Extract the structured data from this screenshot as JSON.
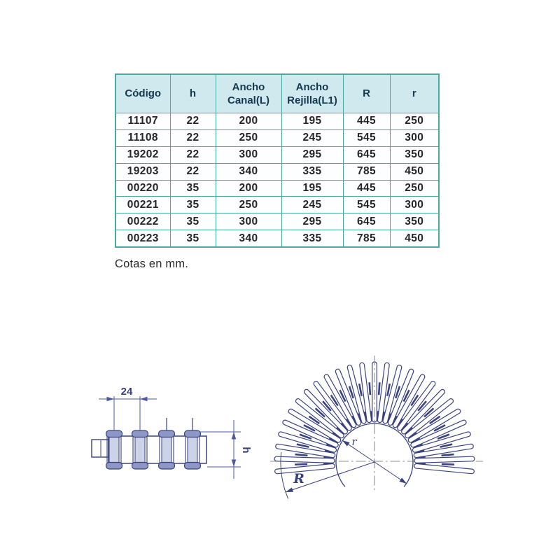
{
  "table": {
    "headers": [
      {
        "lines": [
          "Código"
        ]
      },
      {
        "lines": [
          "h"
        ]
      },
      {
        "lines": [
          "Ancho",
          "Canal(L)"
        ]
      },
      {
        "lines": [
          "Ancho",
          "Rejilla(L1)"
        ]
      },
      {
        "lines": [
          "R"
        ]
      },
      {
        "lines": [
          "r"
        ]
      }
    ],
    "rows": [
      [
        "11107",
        "22",
        "200",
        "195",
        "445",
        "250"
      ],
      [
        "11108",
        "22",
        "250",
        "245",
        "545",
        "300"
      ],
      [
        "19202",
        "22",
        "300",
        "295",
        "645",
        "350"
      ],
      [
        "19203",
        "22",
        "340",
        "335",
        "785",
        "450"
      ],
      [
        "00220",
        "35",
        "200",
        "195",
        "445",
        "250"
      ],
      [
        "00221",
        "35",
        "250",
        "245",
        "545",
        "300"
      ],
      [
        "00222",
        "35",
        "300",
        "295",
        "645",
        "350"
      ],
      [
        "00223",
        "35",
        "340",
        "335",
        "785",
        "450"
      ]
    ]
  },
  "note": "Cotas en mm.",
  "drawings": {
    "side_view": {
      "width_dim_label": "24",
      "height_dim_label": "h"
    },
    "fan_view": {
      "inner_radius_label": "r",
      "outer_radius_label": "R"
    }
  },
  "colors": {
    "table_border": "#4aa9a1",
    "header_bg": "#cfe9ef",
    "header_text": "#14384e",
    "body_text": "#232527",
    "drawing_line": "#39427e",
    "dim_line": "#4d57a0",
    "centerline": "#8f8f8f",
    "cap_fill": "#8d97c6",
    "shaft_fill": "#cdd3e7"
  }
}
